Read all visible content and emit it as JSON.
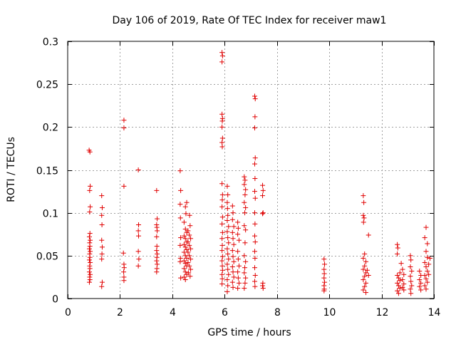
{
  "chart_data": {
    "type": "scatter",
    "title": "Day 106 of 2019, Rate Of TEC Index for receiver maw1",
    "xlabel": "GPS time / hours",
    "ylabel": "ROTI / TECUs",
    "xlim": [
      0,
      14
    ],
    "ylim": [
      0,
      0.3
    ],
    "x_ticks": [
      0,
      2,
      4,
      6,
      8,
      10,
      12,
      14
    ],
    "y_ticks": [
      0,
      0.05,
      0.1,
      0.15,
      0.2,
      0.25,
      0.3
    ],
    "x_tick_labels": [
      "0",
      "2",
      "4",
      "6",
      "8",
      "10",
      "12",
      "14"
    ],
    "y_tick_labels": [
      "0",
      "0.05",
      "0.1",
      "0.15",
      "0.2",
      "0.25",
      "0.3"
    ],
    "grid": true,
    "marker": "+",
    "marker_color": "#e00000",
    "series": [
      {
        "name": "ROTI",
        "points": [
          [
            0.82,
            0.173
          ],
          [
            0.85,
            0.171
          ],
          [
            0.86,
            0.131
          ],
          [
            0.84,
            0.126
          ],
          [
            0.86,
            0.107
          ],
          [
            0.84,
            0.101
          ],
          [
            0.85,
            0.076
          ],
          [
            0.83,
            0.072
          ],
          [
            0.86,
            0.068
          ],
          [
            0.84,
            0.065
          ],
          [
            0.85,
            0.061
          ],
          [
            0.83,
            0.058
          ],
          [
            0.86,
            0.055
          ],
          [
            0.84,
            0.052
          ],
          [
            0.85,
            0.048
          ],
          [
            0.83,
            0.045
          ],
          [
            0.86,
            0.042
          ],
          [
            0.84,
            0.038
          ],
          [
            0.85,
            0.035
          ],
          [
            0.83,
            0.031
          ],
          [
            0.86,
            0.028
          ],
          [
            0.84,
            0.025
          ],
          [
            0.85,
            0.022
          ],
          [
            0.83,
            0.019
          ],
          [
            1.3,
            0.12
          ],
          [
            1.32,
            0.106
          ],
          [
            1.3,
            0.097
          ],
          [
            1.31,
            0.086
          ],
          [
            1.3,
            0.068
          ],
          [
            1.32,
            0.06
          ],
          [
            1.31,
            0.052
          ],
          [
            1.3,
            0.046
          ],
          [
            1.32,
            0.019
          ],
          [
            1.3,
            0.014
          ],
          [
            2.15,
            0.208
          ],
          [
            2.15,
            0.199
          ],
          [
            2.15,
            0.131
          ],
          [
            2.13,
            0.053
          ],
          [
            2.15,
            0.04
          ],
          [
            2.16,
            0.036
          ],
          [
            2.14,
            0.031
          ],
          [
            2.15,
            0.025
          ],
          [
            2.15,
            0.021
          ],
          [
            2.7,
            0.15
          ],
          [
            2.71,
            0.086
          ],
          [
            2.7,
            0.079
          ],
          [
            2.71,
            0.073
          ],
          [
            2.7,
            0.055
          ],
          [
            2.72,
            0.046
          ],
          [
            2.7,
            0.038
          ],
          [
            3.4,
            0.126
          ],
          [
            3.42,
            0.093
          ],
          [
            3.4,
            0.086
          ],
          [
            3.41,
            0.083
          ],
          [
            3.42,
            0.079
          ],
          [
            3.4,
            0.072
          ],
          [
            3.41,
            0.061
          ],
          [
            3.4,
            0.056
          ],
          [
            3.42,
            0.052
          ],
          [
            3.41,
            0.048
          ],
          [
            3.4,
            0.044
          ],
          [
            3.42,
            0.04
          ],
          [
            3.41,
            0.035
          ],
          [
            3.4,
            0.031
          ],
          [
            4.3,
            0.149
          ],
          [
            4.32,
            0.126
          ],
          [
            4.3,
            0.11
          ],
          [
            4.31,
            0.094
          ],
          [
            4.32,
            0.071
          ],
          [
            4.3,
            0.062
          ],
          [
            4.31,
            0.047
          ],
          [
            4.3,
            0.043
          ],
          [
            4.32,
            0.024
          ],
          [
            4.45,
            0.089
          ],
          [
            4.5,
            0.081
          ],
          [
            4.55,
            0.077
          ],
          [
            4.45,
            0.073
          ],
          [
            4.5,
            0.07
          ],
          [
            4.55,
            0.066
          ],
          [
            4.45,
            0.063
          ],
          [
            4.5,
            0.06
          ],
          [
            4.55,
            0.057
          ],
          [
            4.45,
            0.054
          ],
          [
            4.5,
            0.05
          ],
          [
            4.55,
            0.047
          ],
          [
            4.45,
            0.044
          ],
          [
            4.5,
            0.041
          ],
          [
            4.55,
            0.038
          ],
          [
            4.45,
            0.035
          ],
          [
            4.5,
            0.031
          ],
          [
            4.55,
            0.028
          ],
          [
            4.45,
            0.025
          ],
          [
            4.5,
            0.022
          ],
          [
            4.55,
            0.112
          ],
          [
            4.5,
            0.107
          ],
          [
            4.52,
            0.099
          ],
          [
            4.6,
            0.079
          ],
          [
            4.65,
            0.074
          ],
          [
            4.7,
            0.07
          ],
          [
            4.6,
            0.066
          ],
          [
            4.65,
            0.062
          ],
          [
            4.7,
            0.058
          ],
          [
            4.6,
            0.054
          ],
          [
            4.65,
            0.05
          ],
          [
            4.7,
            0.046
          ],
          [
            4.6,
            0.042
          ],
          [
            4.65,
            0.038
          ],
          [
            4.7,
            0.034
          ],
          [
            4.62,
            0.03
          ],
          [
            4.68,
            0.026
          ],
          [
            4.66,
            0.097
          ],
          [
            4.68,
            0.085
          ],
          [
            5.9,
            0.287
          ],
          [
            5.92,
            0.283
          ],
          [
            5.9,
            0.276
          ],
          [
            5.9,
            0.215
          ],
          [
            5.92,
            0.21
          ],
          [
            5.91,
            0.207
          ],
          [
            5.9,
            0.2
          ],
          [
            5.92,
            0.187
          ],
          [
            5.9,
            0.182
          ],
          [
            5.91,
            0.177
          ],
          [
            5.9,
            0.134
          ],
          [
            5.92,
            0.121
          ],
          [
            5.91,
            0.115
          ],
          [
            5.9,
            0.107
          ],
          [
            5.92,
            0.095
          ],
          [
            5.9,
            0.087
          ],
          [
            5.92,
            0.077
          ],
          [
            5.9,
            0.07
          ],
          [
            5.91,
            0.062
          ],
          [
            5.9,
            0.056
          ],
          [
            5.92,
            0.049
          ],
          [
            5.9,
            0.044
          ],
          [
            5.91,
            0.038
          ],
          [
            5.92,
            0.033
          ],
          [
            5.9,
            0.028
          ],
          [
            5.91,
            0.023
          ],
          [
            5.9,
            0.017
          ],
          [
            6.1,
            0.131
          ],
          [
            6.12,
            0.121
          ],
          [
            6.1,
            0.112
          ],
          [
            6.11,
            0.105
          ],
          [
            6.12,
            0.097
          ],
          [
            6.1,
            0.091
          ],
          [
            6.15,
            0.084
          ],
          [
            6.1,
            0.078
          ],
          [
            6.12,
            0.071
          ],
          [
            6.15,
            0.065
          ],
          [
            6.1,
            0.058
          ],
          [
            6.12,
            0.052
          ],
          [
            6.15,
            0.046
          ],
          [
            6.1,
            0.04
          ],
          [
            6.12,
            0.034
          ],
          [
            6.15,
            0.028
          ],
          [
            6.1,
            0.022
          ],
          [
            6.12,
            0.015
          ],
          [
            6.1,
            0.008
          ],
          [
            6.3,
            0.108
          ],
          [
            6.32,
            0.1
          ],
          [
            6.3,
            0.092
          ],
          [
            6.35,
            0.084
          ],
          [
            6.3,
            0.077
          ],
          [
            6.32,
            0.07
          ],
          [
            6.35,
            0.063
          ],
          [
            6.3,
            0.056
          ],
          [
            6.32,
            0.049
          ],
          [
            6.35,
            0.043
          ],
          [
            6.3,
            0.037
          ],
          [
            6.32,
            0.031
          ],
          [
            6.35,
            0.025
          ],
          [
            6.3,
            0.019
          ],
          [
            6.32,
            0.013
          ],
          [
            6.5,
            0.089
          ],
          [
            6.52,
            0.082
          ],
          [
            6.5,
            0.075
          ],
          [
            6.55,
            0.068
          ],
          [
            6.5,
            0.055
          ],
          [
            6.52,
            0.046
          ],
          [
            6.55,
            0.038
          ],
          [
            6.5,
            0.031
          ],
          [
            6.52,
            0.024
          ],
          [
            6.55,
            0.018
          ],
          [
            6.5,
            0.012
          ],
          [
            6.75,
            0.142
          ],
          [
            6.78,
            0.138
          ],
          [
            6.75,
            0.133
          ],
          [
            6.8,
            0.127
          ],
          [
            6.78,
            0.121
          ],
          [
            6.75,
            0.112
          ],
          [
            6.8,
            0.106
          ],
          [
            6.77,
            0.1
          ],
          [
            6.75,
            0.085
          ],
          [
            6.8,
            0.08
          ],
          [
            6.78,
            0.065
          ],
          [
            6.75,
            0.05
          ],
          [
            6.8,
            0.043
          ],
          [
            6.77,
            0.036
          ],
          [
            6.75,
            0.03
          ],
          [
            6.8,
            0.024
          ],
          [
            6.78,
            0.018
          ],
          [
            6.75,
            0.012
          ],
          [
            7.15,
            0.236
          ],
          [
            7.17,
            0.233
          ],
          [
            7.16,
            0.212
          ],
          [
            7.15,
            0.199
          ],
          [
            7.17,
            0.164
          ],
          [
            7.15,
            0.157
          ],
          [
            7.16,
            0.14
          ],
          [
            7.15,
            0.125
          ],
          [
            7.17,
            0.117
          ],
          [
            7.15,
            0.1
          ],
          [
            7.16,
            0.087
          ],
          [
            7.15,
            0.073
          ],
          [
            7.17,
            0.066
          ],
          [
            7.15,
            0.055
          ],
          [
            7.16,
            0.047
          ],
          [
            7.15,
            0.036
          ],
          [
            7.17,
            0.027
          ],
          [
            7.15,
            0.02
          ],
          [
            7.16,
            0.014
          ],
          [
            7.45,
            0.132
          ],
          [
            7.47,
            0.126
          ],
          [
            7.45,
            0.12
          ],
          [
            7.47,
            0.1
          ],
          [
            7.45,
            0.099
          ],
          [
            7.46,
            0.018
          ],
          [
            7.45,
            0.015
          ],
          [
            7.47,
            0.012
          ],
          [
            9.8,
            0.046
          ],
          [
            9.82,
            0.04
          ],
          [
            9.8,
            0.034
          ],
          [
            9.81,
            0.029
          ],
          [
            9.8,
            0.024
          ],
          [
            9.82,
            0.019
          ],
          [
            9.8,
            0.015
          ],
          [
            9.81,
            0.011
          ],
          [
            9.8,
            0.009
          ],
          [
            11.3,
            0.12
          ],
          [
            11.32,
            0.112
          ],
          [
            11.3,
            0.097
          ],
          [
            11.33,
            0.094
          ],
          [
            11.31,
            0.089
          ],
          [
            11.35,
            0.052
          ],
          [
            11.3,
            0.047
          ],
          [
            11.4,
            0.043
          ],
          [
            11.35,
            0.038
          ],
          [
            11.3,
            0.034
          ],
          [
            11.4,
            0.03
          ],
          [
            11.35,
            0.026
          ],
          [
            11.3,
            0.022
          ],
          [
            11.4,
            0.018
          ],
          [
            11.35,
            0.014
          ],
          [
            11.3,
            0.01
          ],
          [
            11.4,
            0.007
          ],
          [
            11.45,
            0.033
          ],
          [
            11.5,
            0.027
          ],
          [
            11.5,
            0.074
          ],
          [
            12.6,
            0.063
          ],
          [
            12.62,
            0.059
          ],
          [
            12.6,
            0.052
          ],
          [
            12.7,
            0.03
          ],
          [
            12.6,
            0.027
          ],
          [
            12.65,
            0.024
          ],
          [
            12.7,
            0.021
          ],
          [
            12.6,
            0.018
          ],
          [
            12.65,
            0.015
          ],
          [
            12.7,
            0.012
          ],
          [
            12.6,
            0.009
          ],
          [
            12.65,
            0.006
          ],
          [
            12.8,
            0.034
          ],
          [
            12.85,
            0.028
          ],
          [
            12.8,
            0.022
          ],
          [
            12.85,
            0.017
          ],
          [
            12.8,
            0.013
          ],
          [
            12.85,
            0.01
          ],
          [
            12.75,
            0.041
          ],
          [
            13.1,
            0.05
          ],
          [
            13.12,
            0.045
          ],
          [
            13.1,
            0.037
          ],
          [
            13.15,
            0.032
          ],
          [
            13.1,
            0.026
          ],
          [
            13.12,
            0.02
          ],
          [
            13.15,
            0.015
          ],
          [
            13.1,
            0.011
          ],
          [
            13.12,
            0.006
          ],
          [
            13.45,
            0.032
          ],
          [
            13.5,
            0.027
          ],
          [
            13.45,
            0.022
          ],
          [
            13.5,
            0.018
          ],
          [
            13.45,
            0.014
          ],
          [
            13.5,
            0.01
          ],
          [
            13.7,
            0.083
          ],
          [
            13.65,
            0.071
          ],
          [
            13.75,
            0.064
          ],
          [
            13.7,
            0.055
          ],
          [
            13.75,
            0.048
          ],
          [
            13.65,
            0.042
          ],
          [
            13.7,
            0.037
          ],
          [
            13.75,
            0.032
          ],
          [
            13.65,
            0.027
          ],
          [
            13.7,
            0.023
          ],
          [
            13.75,
            0.019
          ],
          [
            13.65,
            0.015
          ],
          [
            13.7,
            0.011
          ],
          [
            13.8,
            0.028
          ],
          [
            13.85,
            0.047
          ],
          [
            13.8,
            0.04
          ]
        ]
      }
    ]
  }
}
